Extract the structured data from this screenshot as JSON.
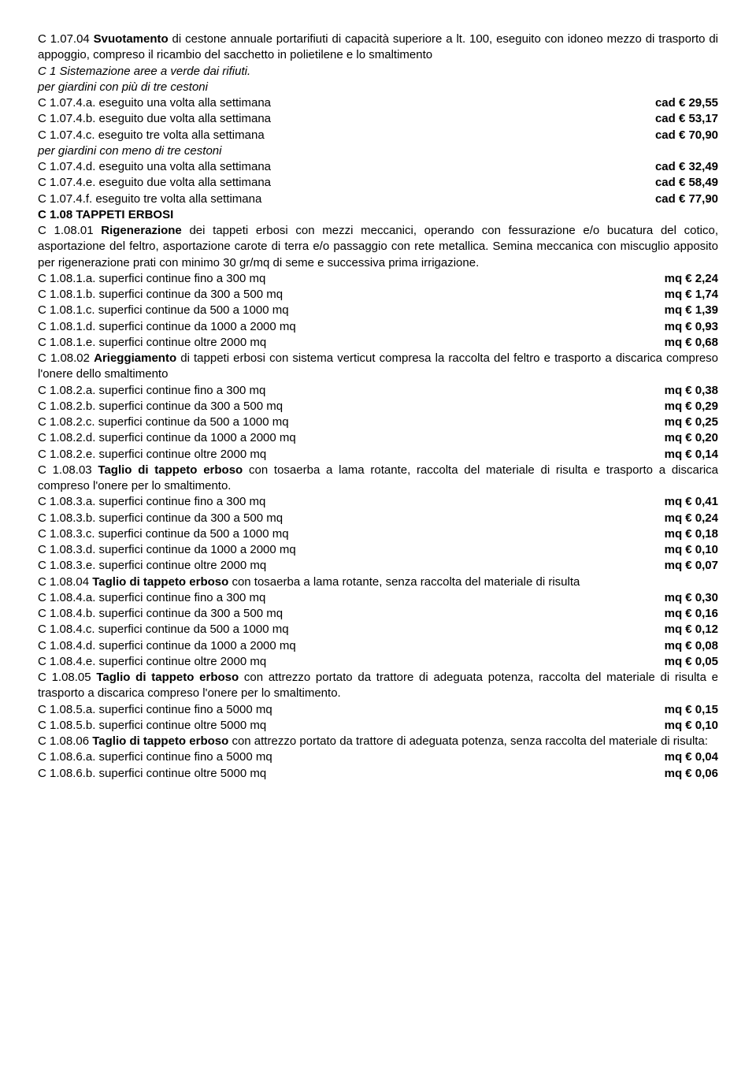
{
  "p1": {
    "code": "C 1.07.04",
    "title": "Svuotamento",
    "rest": " di cestone annuale portarifiuti di capacità superiore a lt. 100, eseguito con idoneo mezzo di trasporto di appoggio, compreso il ricambio del sacchetto in polietilene e lo smaltimento"
  },
  "heading1": "C 1 Sistemazione aree a verde  dai rifiuti.",
  "note1": "per giardini con più di tre cestoni",
  "r1": {
    "l": "C 1.07.4.a. eseguito una volta alla settimana",
    "r": "cad € 29,55"
  },
  "r2": {
    "l": "C 1.07.4.b. eseguito due volta alla settimana",
    "r": "cad € 53,17"
  },
  "r3": {
    "l": "C 1.07.4.c. eseguito tre volta alla settimana",
    "r": "cad € 70,90"
  },
  "note2": "per giardini con meno di tre cestoni",
  "r4": {
    "l": "C 1.07.4.d. eseguito una volta alla settimana",
    "r": "cad € 32,49"
  },
  "r5": {
    "l": "C 1.07.4.e. eseguito due volta alla settimana",
    "r": "cad € 58,49"
  },
  "r6": {
    "l": "C 1.07.4.f. eseguito tre volta alla settimana",
    "r": "cad € 77,90"
  },
  "heading2": "C 1.08 TAPPETI ERBOSI",
  "p2": {
    "code": "C 1.08.01",
    "title": "Rigenerazione",
    "rest": " dei tappeti erbosi con mezzi meccanici, operando con fessurazione e/o bucatura del cotico, asportazione del feltro, asportazione carote di terra e/o passaggio con rete metallica. Semina meccanica con miscuglio apposito per rigenerazione prati con minimo 30 gr/mq di seme e successiva prima irrigazione."
  },
  "r7": {
    "l": "C 1.08.1.a. superfici continue fino a 300 mq",
    "r": "mq € 2,24"
  },
  "r8": {
    "l": "C 1.08.1.b. superfici continue da 300 a 500 mq",
    "r": "mq € 1,74"
  },
  "r9": {
    "l": "C 1.08.1.c. superfici continue da 500 a 1000 mq",
    "r": "mq € 1,39"
  },
  "r10": {
    "l": "C 1.08.1.d. superfici continue da 1000 a 2000 mq",
    "r": "mq € 0,93"
  },
  "r11": {
    "l": "C 1.08.1.e. superfici continue oltre 2000 mq",
    "r": "mq € 0,68"
  },
  "p3": {
    "code": "C 1.08.02",
    "title": "Arieggiamento",
    "rest": " di tappeti erbosi con sistema verticut compresa la raccolta del feltro e trasporto a discarica compreso l'onere dello smaltimento"
  },
  "r12": {
    "l": "C 1.08.2.a. superfici continue fino a 300 mq",
    "r": "mq € 0,38"
  },
  "r13": {
    "l": "C 1.08.2.b. superfici continue da 300 a 500 mq",
    "r": "mq € 0,29"
  },
  "r14": {
    "l": "C 1.08.2.c. superfici continue da 500 a 1000 mq",
    "r": "mq € 0,25"
  },
  "r15": {
    "l": "C 1.08.2.d. superfici continue da 1000 a 2000 mq",
    "r": "mq € 0,20"
  },
  "r16": {
    "l": "C 1.08.2.e. superfici continue oltre 2000 mq",
    "r": "mq € 0,14"
  },
  "p4": {
    "code": "C 1.08.03",
    "title": "Taglio di tappeto erboso",
    "rest": " con tosaerba a lama rotante, raccolta del materiale di risulta e trasporto a discarica compreso l'onere per lo smaltimento."
  },
  "r17": {
    "l": "C 1.08.3.a. superfici continue fino a 300 mq",
    "r": "mq € 0,41"
  },
  "r18": {
    "l": "C 1.08.3.b. superfici continue da 300 a 500 mq",
    "r": "mq € 0,24"
  },
  "r19": {
    "l": "C 1.08.3.c. superfici continue da 500 a 1000 mq",
    "r": "mq € 0,18"
  },
  "r20": {
    "l": "C 1.08.3.d. superfici continue da 1000 a 2000 mq",
    "r": "mq € 0,10"
  },
  "r21": {
    "l": "C 1.08.3.e. superfici continue oltre 2000 mq",
    "r": "mq € 0,07"
  },
  "p5": {
    "code": "C 1.08.04",
    "title": "Taglio di tappeto erboso",
    "rest": " con tosaerba a lama rotante, senza raccolta del materiale di risulta"
  },
  "r22": {
    "l": "C 1.08.4.a. superfici continue fino a 300 mq",
    "r": "mq € 0,30"
  },
  "r23": {
    "l": "C 1.08.4.b. superfici continue da 300 a 500 mq",
    "r": "mq € 0,16"
  },
  "r24": {
    "l": "C 1.08.4.c. superfici continue da 500 a 1000 mq",
    "r": "mq € 0,12"
  },
  "r25": {
    "l": "C 1.08.4.d. superfici continue da 1000 a 2000 mq",
    "r": "mq € 0,08"
  },
  "r26": {
    "l": "C 1.08.4.e. superfici continue oltre 2000 mq",
    "r": "mq € 0,05"
  },
  "p6": {
    "code": "C 1.08.05",
    "title": "Taglio di tappeto erboso",
    "rest": " con attrezzo portato da trattore di adeguata potenza, raccolta del materiale di risulta e trasporto a discarica compreso l'onere per lo smaltimento."
  },
  "r27": {
    "l": "C 1.08.5.a. superfici continue fino a 5000 mq",
    "r": "mq € 0,15"
  },
  "r28": {
    "l": "C 1.08.5.b. superfici continue oltre 5000 mq",
    "r": "mq € 0,10"
  },
  "p7": {
    "code": "C 1.08.06",
    "title": "Taglio di tappeto erboso",
    "rest": " con attrezzo portato da trattore di adeguata potenza, senza raccolta del materiale di risulta:"
  },
  "r29": {
    "l": "C 1.08.6.a. superfici continue fino a 5000 mq",
    "r": "mq € 0,04"
  },
  "r30": {
    "l": "C 1.08.6.b. superfici continue oltre 5000 mq",
    "r": "mq € 0,06"
  }
}
